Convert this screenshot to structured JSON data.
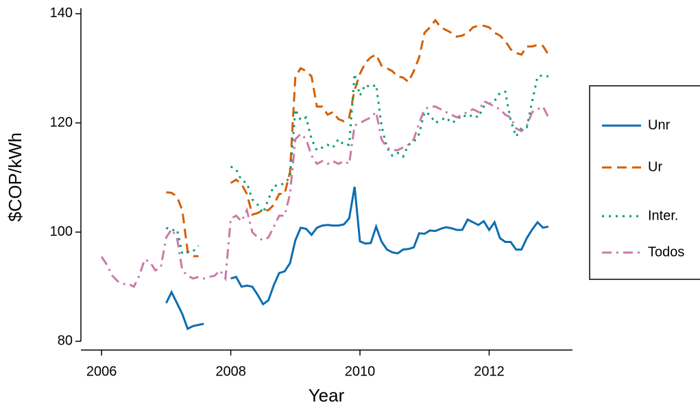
{
  "chart_data": {
    "type": "line",
    "x_label": "Year",
    "y_label": "$COP/kWh",
    "xlim": [
      2005.68,
      2013.29
    ],
    "xticks": [
      2006,
      2008,
      2010,
      2012
    ],
    "ylim": [
      78.4,
      141
    ],
    "yticks": [
      80,
      100,
      120,
      140
    ],
    "grid": false,
    "legend": "right",
    "x": [
      2006,
      2006.083,
      2006.167,
      2006.25,
      2006.333,
      2006.417,
      2006.5,
      2006.583,
      2006.667,
      2006.75,
      2006.833,
      2006.917,
      2007,
      2007.083,
      2007.167,
      2007.25,
      2007.333,
      2007.417,
      2007.5,
      2007.583,
      2007.667,
      2007.75,
      2007.833,
      2007.917,
      2008,
      2008.083,
      2008.167,
      2008.25,
      2008.333,
      2008.417,
      2008.5,
      2008.583,
      2008.667,
      2008.75,
      2008.833,
      2008.917,
      2009,
      2009.083,
      2009.167,
      2009.25,
      2009.333,
      2009.417,
      2009.5,
      2009.583,
      2009.667,
      2009.75,
      2009.833,
      2009.917,
      2010,
      2010.083,
      2010.167,
      2010.25,
      2010.333,
      2010.417,
      2010.5,
      2010.583,
      2010.667,
      2010.75,
      2010.833,
      2010.917,
      2011,
      2011.083,
      2011.167,
      2011.25,
      2011.333,
      2011.417,
      2011.5,
      2011.583,
      2011.667,
      2011.75,
      2011.833,
      2011.917,
      2012,
      2012.083,
      2012.167,
      2012.25,
      2012.333,
      2012.417,
      2012.5,
      2012.583,
      2012.667,
      2012.75,
      2012.833,
      2012.917
    ],
    "series": [
      {
        "name": "Unr",
        "color": "#0c6db0",
        "dash": "solid",
        "values": [
          null,
          null,
          null,
          null,
          null,
          null,
          null,
          null,
          null,
          null,
          null,
          null,
          87,
          89,
          87,
          85,
          82.3,
          82.8,
          83,
          83.2,
          null,
          null,
          null,
          null,
          91.5,
          91.8,
          90,
          90.2,
          90,
          88.5,
          86.8,
          87.5,
          90.3,
          92.5,
          92.8,
          94.3,
          98.5,
          100.8,
          100.6,
          99.5,
          100.8,
          101.2,
          101.3,
          101.2,
          101.2,
          101.4,
          102.5,
          108.3,
          98.3,
          97.9,
          98,
          101,
          98.3,
          96.8,
          96.3,
          96.1,
          96.8,
          96.9,
          97.2,
          99.8,
          99.7,
          100.3,
          100.2,
          100.6,
          100.9,
          100.7,
          100.4,
          100.4,
          102.3,
          101.8,
          101.3,
          102,
          100.4,
          101.8,
          98.9,
          98.2,
          98.2,
          96.8,
          96.8,
          98.9,
          100.5,
          101.8,
          100.8,
          101
        ]
      },
      {
        "name": "Ur",
        "color": "#d55e00",
        "dash": "dashed",
        "values": [
          null,
          null,
          null,
          null,
          null,
          null,
          null,
          null,
          null,
          null,
          null,
          null,
          107.3,
          107.2,
          106.5,
          104,
          96.5,
          95.6,
          95.6,
          null,
          null,
          null,
          null,
          null,
          109,
          109.6,
          108.8,
          107,
          103.2,
          103.5,
          104,
          104,
          105,
          107,
          107,
          111,
          128.5,
          130,
          129.5,
          128.5,
          123,
          123,
          121.5,
          122,
          120.7,
          120.3,
          121,
          126,
          129,
          131,
          132,
          132.5,
          130.5,
          130,
          129.5,
          128.5,
          128.3,
          127.5,
          129.5,
          132,
          136.5,
          137.5,
          138.8,
          137.5,
          137,
          136.5,
          135.8,
          136,
          136.5,
          137.5,
          137.8,
          137.8,
          137.5,
          136.5,
          136,
          135,
          133.5,
          132.8,
          132.5,
          134,
          134,
          134.3,
          134.1,
          132.5
        ]
      },
      {
        "name": "Inter.",
        "color": "#009e73",
        "dash": "dotted",
        "values": [
          null,
          null,
          null,
          null,
          null,
          null,
          null,
          null,
          null,
          null,
          null,
          null,
          100.8,
          100.3,
          100.5,
          96,
          96.3,
          96.5,
          97.5,
          null,
          null,
          null,
          null,
          null,
          112,
          111.5,
          109.5,
          109,
          106,
          105,
          103.5,
          106,
          108.5,
          108.5,
          109,
          110,
          122.5,
          120.5,
          121,
          117,
          115,
          115.5,
          116,
          115.5,
          117,
          116,
          116,
          129,
          125,
          127,
          126.5,
          127,
          119.5,
          115.5,
          114,
          114.5,
          113.8,
          116,
          116.5,
          118,
          122,
          121.5,
          120,
          120.5,
          121,
          120,
          120.5,
          121.5,
          121,
          121.5,
          121,
          123,
          123.5,
          124,
          125.5,
          125.7,
          120.5,
          117.5,
          119,
          119.2,
          124,
          128.5,
          128.7,
          128.5
        ]
      },
      {
        "name": "Todos",
        "color": "#cc79a7",
        "dash": "dashdot",
        "values": [
          95.5,
          94,
          92,
          91,
          90.5,
          90.5,
          90,
          92,
          95,
          94.5,
          93,
          93.5,
          99,
          100.5,
          99,
          93,
          92,
          91.5,
          91.8,
          91.5,
          91.8,
          92,
          93,
          91.5,
          102.5,
          103,
          102,
          104,
          100,
          99,
          98.5,
          99,
          101,
          103,
          103,
          107,
          117,
          118,
          117,
          114,
          112.5,
          113,
          112.5,
          113,
          112.5,
          113,
          112.5,
          119.5,
          120,
          120.5,
          121,
          122,
          117,
          115.5,
          115,
          115,
          115.5,
          116,
          117,
          120,
          122.5,
          123,
          123,
          122.5,
          122,
          121.5,
          121,
          121.5,
          122,
          122.5,
          122,
          124,
          123.5,
          123,
          122.5,
          121.5,
          121,
          119,
          118.5,
          119.5,
          122,
          122.5,
          123,
          121
        ]
      }
    ]
  }
}
